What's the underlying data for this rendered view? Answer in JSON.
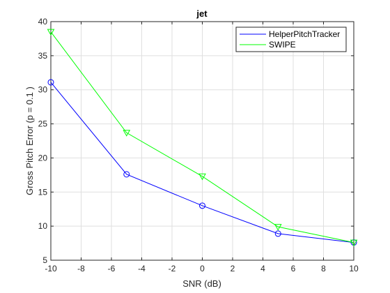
{
  "chart_data": {
    "type": "line",
    "title": "jet",
    "xlabel": "SNR (dB)",
    "ylabel": "Gross Pitch Error (p = 0.1 )",
    "x": [
      -10,
      -5,
      0,
      5,
      10
    ],
    "xlim": [
      -10,
      10
    ],
    "ylim": [
      5,
      40
    ],
    "xticks": [
      -10,
      -8,
      -6,
      -4,
      -2,
      0,
      2,
      4,
      6,
      8,
      10
    ],
    "yticks": [
      5,
      10,
      15,
      20,
      25,
      30,
      35,
      40
    ],
    "grid": true,
    "legend_position": "top-right",
    "series": [
      {
        "name": "HelperPitchTracker",
        "color": "#0000ff",
        "marker": "circle",
        "values": [
          31.1,
          17.6,
          13.0,
          8.9,
          7.6
        ]
      },
      {
        "name": "SWIPE",
        "color": "#00ff00",
        "marker": "triangle-down",
        "values": [
          38.5,
          23.7,
          17.3,
          9.9,
          7.6
        ]
      }
    ]
  }
}
